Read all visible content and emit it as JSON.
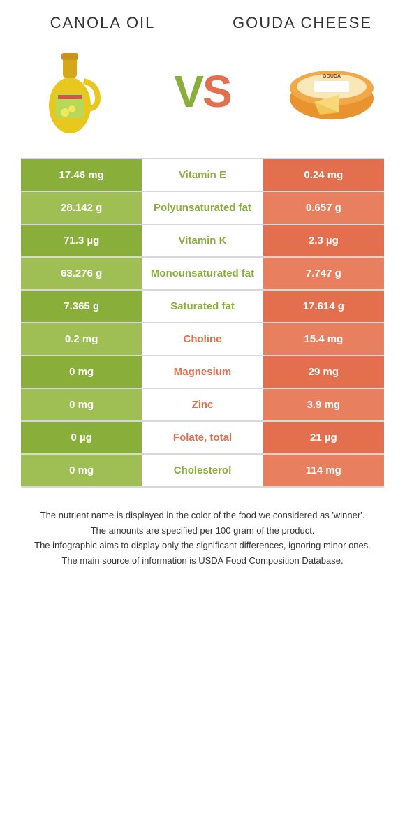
{
  "colors": {
    "green_dark": "#8aae3a",
    "green_light": "#9fbf55",
    "orange_dark": "#e36f4e",
    "orange_light": "#e8805f",
    "row_border": "#d8d8d8"
  },
  "header": {
    "left_title": "Canola oil",
    "right_title": "Gouda cheese"
  },
  "vs": {
    "text_v": "V",
    "text_s": "S"
  },
  "rows": [
    {
      "left": "17.46 mg",
      "label": "Vitamin E",
      "right": "0.24 mg",
      "winner": "left"
    },
    {
      "left": "28.142 g",
      "label": "Polyunsaturated fat",
      "right": "0.657 g",
      "winner": "left"
    },
    {
      "left": "71.3 µg",
      "label": "Vitamin K",
      "right": "2.3 µg",
      "winner": "left"
    },
    {
      "left": "63.276 g",
      "label": "Monounsaturated fat",
      "right": "7.747 g",
      "winner": "left"
    },
    {
      "left": "7.365 g",
      "label": "Saturated fat",
      "right": "17.614 g",
      "winner": "left"
    },
    {
      "left": "0.2 mg",
      "label": "Choline",
      "right": "15.4 mg",
      "winner": "right"
    },
    {
      "left": "0 mg",
      "label": "Magnesium",
      "right": "29 mg",
      "winner": "right"
    },
    {
      "left": "0 mg",
      "label": "Zinc",
      "right": "3.9 mg",
      "winner": "right"
    },
    {
      "left": "0 µg",
      "label": "Folate, total",
      "right": "21 µg",
      "winner": "right"
    },
    {
      "left": "0 mg",
      "label": "Cholesterol",
      "right": "114 mg",
      "winner": "left"
    }
  ],
  "footnotes": [
    "The nutrient name is displayed in the color of the food we considered as 'winner'.",
    "The amounts are specified per 100 gram of the product.",
    "The infographic aims to display only the significant differences, ignoring minor ones.",
    "The main source of information is USDA Food Composition Database."
  ]
}
